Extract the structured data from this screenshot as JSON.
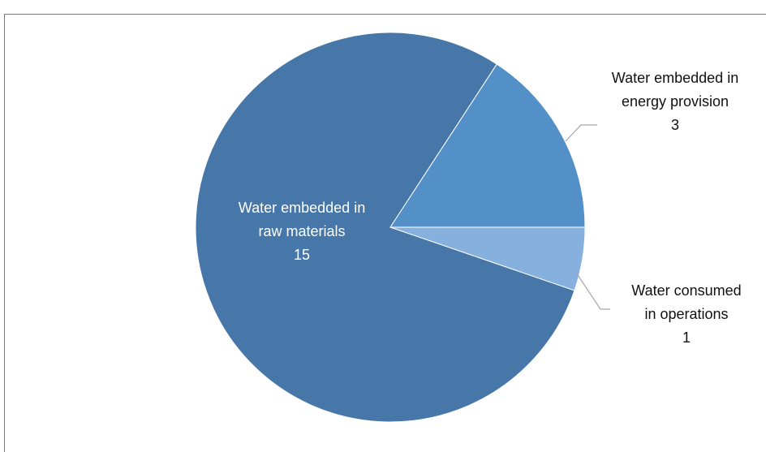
{
  "chart_data": {
    "type": "pie",
    "slices": [
      {
        "label_lines": [
          "Water embedded in",
          "raw materials"
        ],
        "value": 15,
        "color": "#4677a8"
      },
      {
        "label_lines": [
          "Water embedded in",
          "energy provision"
        ],
        "value": 3,
        "color": "#5390c8"
      },
      {
        "label_lines": [
          "Water consumed",
          "in operations"
        ],
        "value": 1,
        "color": "#86b0de"
      }
    ],
    "title": "",
    "legend": "none"
  }
}
